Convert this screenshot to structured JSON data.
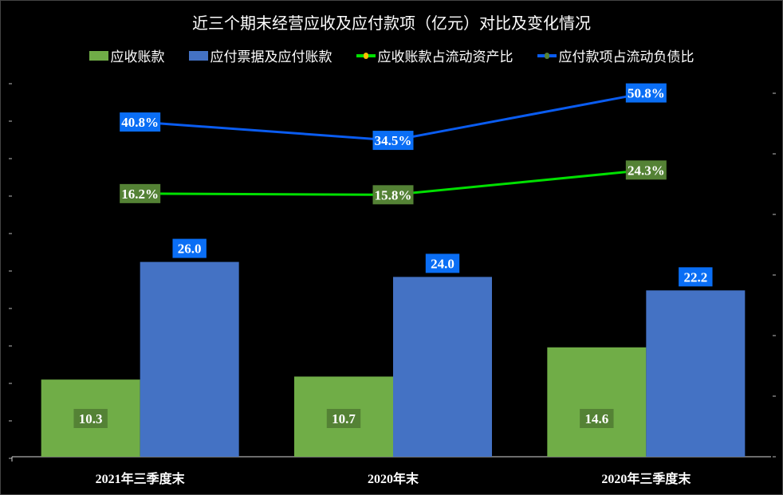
{
  "chart_data": {
    "type": "bar+line",
    "title": "近三个期末经营应收及应付款项（亿元）对比及变化情况",
    "categories": [
      "2021年三季度末",
      "2020年末",
      "2020年三季度末"
    ],
    "series": [
      {
        "name": "应收账款",
        "type": "bar",
        "axis": "left",
        "values": [
          10.3,
          10.7,
          14.6
        ],
        "color": "#70ad47",
        "label_bg": "#548235"
      },
      {
        "name": "应付票据及应付账款",
        "type": "bar",
        "axis": "left",
        "values": [
          26.0,
          24.0,
          22.2
        ],
        "color": "#4472c4",
        "label_bg": "#0a6ef5"
      },
      {
        "name": "应收账款占流动资产比",
        "type": "line",
        "axis": "right",
        "values": [
          16.2,
          15.8,
          24.3
        ],
        "unit": "%",
        "color": "#00e000",
        "marker_color": "#ffc000",
        "label_bg": "#548235"
      },
      {
        "name": "应付款项占流动负债比",
        "type": "line",
        "axis": "right",
        "values": [
          40.8,
          34.5,
          50.8
        ],
        "unit": "%",
        "color": "#0a5cf0",
        "marker_color": "#548235",
        "label_bg": "#0a6ef5"
      }
    ],
    "ylim_left": [
      0,
      50
    ],
    "left_tick_step": 5,
    "right_tick_count": 7,
    "tick_labels_visible": false,
    "grid": false,
    "legend": "top",
    "background": "#000000"
  }
}
